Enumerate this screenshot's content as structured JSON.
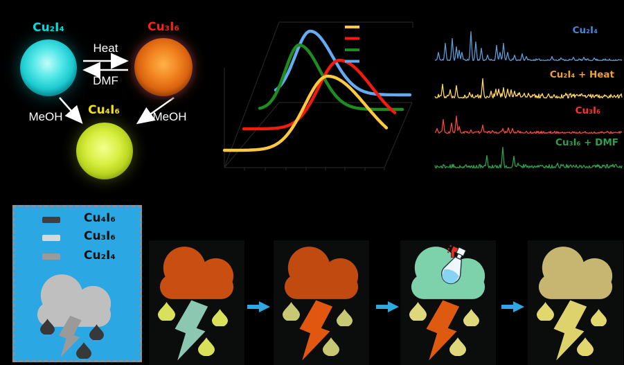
{
  "figure": {
    "background": "#000000"
  },
  "scheme": {
    "compounds": [
      {
        "label": "Cu₂I₄",
        "color": "#00dde0",
        "glow": "cyan"
      },
      {
        "label": "Cu₃I₆",
        "color": "#ff2015",
        "glow": "orange"
      },
      {
        "label": "Cu₄I₆",
        "color": "#f2e600",
        "glow": "yellow-green"
      }
    ],
    "heat_label": "Heat",
    "dmf_label": "DMF",
    "meoh_left_label": "MeOH",
    "meoh_right_label": "MeOH",
    "arrow_color": "#ffffff"
  },
  "chart_data": [
    {
      "id": "emission-spectra-waterfall",
      "type": "line",
      "note": "3D waterfall of four emission spectra; axis tick labels and legend text are rendered black-on-black and are not legible. Values below are in figure pixel units (x = wavelength axis, y = intensity, smaller y = higher intensity).",
      "grid": false,
      "legend_position": "upper-right",
      "series": [
        {
          "name": "yellow",
          "color": "#FFC93E",
          "x_start": 24,
          "x_end": 258,
          "baseline": 217,
          "peak_x": 173,
          "peak_y": 110,
          "sigma_left": 33,
          "sigma_right": 55
        },
        {
          "name": "red",
          "color": "#F21B12",
          "x_start": 52,
          "x_end": 270,
          "baseline": 186,
          "peak_x": 190,
          "peak_y": 87,
          "sigma_left": 30,
          "sigma_right": 47
        },
        {
          "name": "green",
          "color": "#1E8C1E",
          "x_start": 75,
          "x_end": 282,
          "baseline": 158,
          "peak_x": 132,
          "peak_y": 65,
          "sigma_left": 20,
          "sigma_right": 30
        },
        {
          "name": "blue",
          "color": "#64ABF2",
          "x_start": 98,
          "x_end": 292,
          "baseline": 137,
          "peak_x": 148,
          "peak_y": 45,
          "sigma_left": 22,
          "sigma_right": 32
        }
      ],
      "legend": {
        "x1": 198,
        "x2": 219,
        "y_start": 39,
        "dy": 16.5
      }
    },
    {
      "id": "pxrd-patterns",
      "type": "line",
      "note": "Four stacked powder XRD patterns; peaks as [x_px, height_px] in figure pixel units.",
      "x_range": [
        17,
        287
      ],
      "traces": [
        {
          "label": "Cu₂I₄",
          "label_color": "#3F87E0",
          "color": "#5B9BD5",
          "baseline": 88,
          "noise": 1.1,
          "seed": 11,
          "peaks": [
            [
              22,
              12
            ],
            [
              32,
              25
            ],
            [
              42,
              32
            ],
            [
              48,
              20
            ],
            [
              52,
              15
            ],
            [
              56,
              12
            ],
            [
              69,
              42
            ],
            [
              76,
              27
            ],
            [
              84,
              18
            ],
            [
              93,
              8
            ],
            [
              106,
              22
            ],
            [
              111,
              12
            ],
            [
              116,
              25
            ],
            [
              122,
              12
            ],
            [
              132,
              8
            ],
            [
              143,
              10
            ],
            [
              149,
              6
            ],
            [
              186,
              6
            ],
            [
              199,
              4
            ],
            [
              217,
              5
            ],
            [
              232,
              5
            ],
            [
              247,
              4
            ]
          ]
        },
        {
          "label": "Cu₂I₄ + Heat",
          "label_color": "#F0A032",
          "color": "#FFD75E",
          "baseline": 142,
          "noise": 2.8,
          "seed": 22,
          "peaks": [
            [
              28,
              20
            ],
            [
              39,
              12
            ],
            [
              48,
              18
            ],
            [
              67,
              8
            ],
            [
              86,
              28
            ],
            [
              98,
              10
            ],
            [
              105,
              13
            ],
            [
              109,
              13
            ],
            [
              116,
              15
            ],
            [
              122,
              13
            ],
            [
              127,
              12
            ],
            [
              132,
              10
            ],
            [
              139,
              8
            ],
            [
              146,
              7
            ],
            [
              152,
              7
            ],
            [
              172,
              6
            ],
            [
              181,
              6
            ],
            [
              189,
              5
            ],
            [
              206,
              7
            ],
            [
              216,
              5
            ],
            [
              226,
              5
            ],
            [
              239,
              5
            ],
            [
              251,
              5
            ],
            [
              262,
              4
            ],
            [
              276,
              4
            ]
          ]
        },
        {
          "label": "Cu₃I₆",
          "label_color": "#FF3326",
          "color": "#F4483E",
          "baseline": 193,
          "noise": 1.3,
          "seed": 33,
          "peaks": [
            [
              20,
              7
            ],
            [
              29,
              20
            ],
            [
              41,
              15
            ],
            [
              48,
              25
            ],
            [
              52,
              10
            ],
            [
              69,
              5
            ],
            [
              86,
              12
            ],
            [
              100,
              4
            ],
            [
              115,
              7
            ],
            [
              123,
              8
            ],
            [
              129,
              7
            ],
            [
              137,
              4
            ],
            [
              149,
              3
            ]
          ]
        },
        {
          "label": "Cu₃I₆ + DMF",
          "label_color": "#2E9E50",
          "color": "#2E9E50",
          "baseline": 243,
          "noise": 2.2,
          "seed": 44,
          "peaks": [
            [
              92,
              18
            ],
            [
              115,
              30
            ],
            [
              131,
              17
            ],
            [
              137,
              7
            ],
            [
              148,
              5
            ],
            [
              172,
              4
            ],
            [
              194,
              7
            ],
            [
              202,
              5
            ],
            [
              217,
              4
            ],
            [
              232,
              4
            ],
            [
              247,
              4
            ],
            [
              261,
              4
            ],
            [
              272,
              4
            ]
          ]
        }
      ]
    }
  ],
  "legend_panel": {
    "bg": "#2BA7E3",
    "items": [
      {
        "label": "Cu₄I₆",
        "swatch": "#3f3f3f"
      },
      {
        "label": "Cu₃I₆",
        "swatch": "#d8d8d8"
      },
      {
        "label": "Cu₂I₄",
        "swatch": "#9a9a9a"
      }
    ],
    "cloud_color": "#bfbfbf",
    "bolt_color": "#9a9a9a",
    "drop_color": "#383838"
  },
  "weather_sequence": {
    "arrow_color": "#2FA8E1",
    "panels": [
      {
        "cloud": "#c94e11",
        "bolt": "#8cc7b2",
        "drops": "#d8e159",
        "spray_bottle": false
      },
      {
        "cloud": "#c04a10",
        "bolt": "#e2570f",
        "drops": "#c6c873",
        "spray_bottle": false
      },
      {
        "cloud": "#7ed2ab",
        "bolt": "#dd5a10",
        "drops": "#ded77b",
        "spray_bottle": true
      },
      {
        "cloud": "#c6b671",
        "bolt": "#ddd26b",
        "drops": "#e2d76e",
        "spray_bottle": false
      }
    ]
  }
}
